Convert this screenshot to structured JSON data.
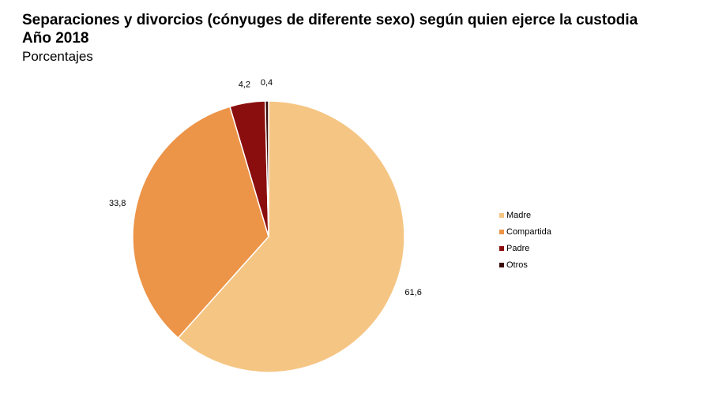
{
  "chart_data": {
    "type": "pie",
    "title": "Separaciones y divorcios (cónyuges de diferente sexo) según quien ejerce la custodia",
    "subtitle_year": "Año 2018",
    "unit_label": "Porcentajes",
    "categories": [
      "Madre",
      "Compartida",
      "Padre",
      "Otros"
    ],
    "values": [
      61.6,
      33.8,
      4.2,
      0.4
    ],
    "data_labels": [
      "61,6",
      "33,8",
      "4,2",
      "0,4"
    ],
    "colors": [
      "#F5C583",
      "#EC9448",
      "#8B0E0E",
      "#3A0A0A"
    ],
    "legend_position": "right"
  }
}
